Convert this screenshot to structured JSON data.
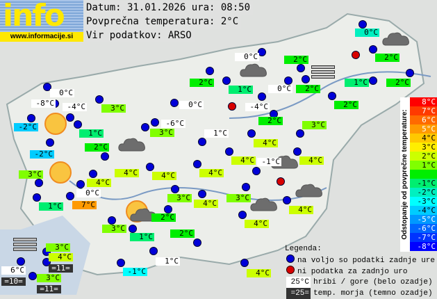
{
  "header": {
    "logo_text": "info",
    "logo_url": "www.informacije.si",
    "date_line": "Datum: 31.01.2026 ura: 08:50",
    "avg_line": "Povprečna temperatura: 2°C",
    "source_line": "Vir podatkov: ARSO"
  },
  "colors": {
    "station_ok": "#0000d8",
    "station_missing": "#d80000",
    "mountain_bg": "#ffffff",
    "sea_bg": "#333333"
  },
  "scale": {
    "title": "Odstopanje od povprečne temperature:",
    "rows": [
      {
        "label": "8°C",
        "color": "#ff0000"
      },
      {
        "label": "7°C",
        "color": "#ff3a00"
      },
      {
        "label": "6°C",
        "color": "#ff6a00"
      },
      {
        "label": "5°C",
        "color": "#ff9a00"
      },
      {
        "label": "4°C",
        "color": "#ffc800"
      },
      {
        "label": "3°C",
        "color": "#ffee00"
      },
      {
        "label": "2°C",
        "color": "#ccff00"
      },
      {
        "label": "1°C",
        "color": "#80ff00"
      },
      {
        "label": "",
        "color": "#00ee00"
      },
      {
        "label": "-1°C",
        "color": "#00ee70"
      },
      {
        "label": "-2°C",
        "color": "#00f0c0"
      },
      {
        "label": "-3°C",
        "color": "#00ffff"
      },
      {
        "label": "-4°C",
        "color": "#00ccff"
      },
      {
        "label": "-5°C",
        "color": "#0099ff"
      },
      {
        "label": "-6°C",
        "color": "#0066ff"
      },
      {
        "label": "-7°C",
        "color": "#0033ff"
      },
      {
        "label": "-8°C",
        "color": "#0000ff"
      }
    ]
  },
  "legend": {
    "title": "Legenda:",
    "ok": "na voljo so podatki zadnje ure",
    "missing": "ni podatka za zadnjo uro",
    "mountain_sample": "25°C",
    "mountain_text": "hribi / gore (belo ozadje)",
    "sea_sample": "=25=",
    "sea_text": "temp. morja (temno ozadje)"
  },
  "stations": [
    {
      "t": "0°C",
      "k": "m"
    },
    {
      "t": "-8°C",
      "k": "m"
    },
    {
      "t": "-4°C",
      "k": "m"
    },
    {
      "t": "3°C",
      "k": "v"
    },
    {
      "t": "-2°C",
      "k": "v"
    },
    {
      "t": "1°C",
      "k": "v"
    },
    {
      "t": "2°C",
      "k": "v"
    },
    {
      "t": "-2°C",
      "k": "v"
    },
    {
      "t": "3°C",
      "k": "v"
    },
    {
      "t": "4°C",
      "k": "v"
    },
    {
      "t": "4°C",
      "k": "v"
    },
    {
      "t": "0°C",
      "k": "m"
    },
    {
      "t": "7°C",
      "k": "v"
    },
    {
      "t": "1°C",
      "k": "v"
    },
    {
      "t": "3°C",
      "k": "v"
    },
    {
      "t": "1°C",
      "k": "v"
    },
    {
      "t": "2°C",
      "k": "v"
    },
    {
      "t": "2°C",
      "k": "v"
    },
    {
      "t": "1°C",
      "k": "m"
    },
    {
      "t": "-1°C",
      "k": "v"
    },
    {
      "t": "3°C",
      "k": "v"
    },
    {
      "t": "4°C",
      "k": "v"
    },
    {
      "t": "=11=",
      "k": "s"
    },
    {
      "t": "6°C",
      "k": "m"
    },
    {
      "t": "=10=",
      "k": "s"
    },
    {
      "t": "3°C",
      "k": "v"
    },
    {
      "t": "=11=",
      "k": "s"
    },
    {
      "t": "0°C",
      "k": "m"
    },
    {
      "t": "2°C",
      "k": "v"
    },
    {
      "t": "1°C",
      "k": "v"
    },
    {
      "t": "0°C",
      "k": "m"
    },
    {
      "t": "2°C",
      "k": "v"
    },
    {
      "t": "2°C",
      "k": "v"
    },
    {
      "t": "0°C",
      "k": "m"
    },
    {
      "t": "-4°C",
      "k": "m"
    },
    {
      "t": "-6°C",
      "k": "m"
    },
    {
      "t": "3°C",
      "k": "v"
    },
    {
      "t": "2°C",
      "k": "v"
    },
    {
      "t": "3°C",
      "k": "v"
    },
    {
      "t": "1°C",
      "k": "m"
    },
    {
      "t": "4°C",
      "k": "v"
    },
    {
      "t": "4°C",
      "k": "v"
    },
    {
      "t": "-1°C",
      "k": "m"
    },
    {
      "t": "4°C",
      "k": "v"
    },
    {
      "t": "4°C",
      "k": "v"
    },
    {
      "t": "4°C",
      "k": "v"
    },
    {
      "t": "3°C",
      "k": "v"
    },
    {
      "t": "4°C",
      "k": "v"
    },
    {
      "t": "3°C",
      "k": "v"
    },
    {
      "t": "4°C",
      "k": "v"
    },
    {
      "t": "4°C",
      "k": "v"
    },
    {
      "t": "4°C",
      "k": "v"
    },
    {
      "t": "0°C",
      "k": "v"
    },
    {
      "t": "2°C",
      "k": "v"
    },
    {
      "t": "2°C",
      "k": "v"
    },
    {
      "t": "1°C",
      "k": "v"
    },
    {
      "t": "2°C",
      "k": "v"
    }
  ]
}
